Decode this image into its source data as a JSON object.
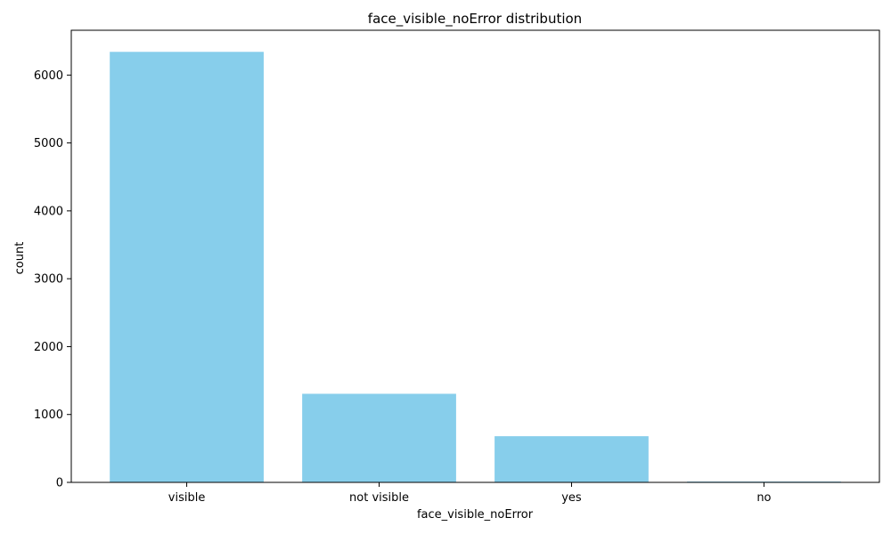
{
  "chart_data": {
    "type": "bar",
    "title": "face_visible_noError distribution",
    "xlabel": "face_visible_noError",
    "ylabel": "count",
    "categories": [
      "visible",
      "not visible",
      "yes",
      "no"
    ],
    "values": [
      6342,
      1305,
      680,
      12
    ],
    "ylim": [
      0,
      6660
    ],
    "yticks": [
      0,
      1000,
      2000,
      3000,
      4000,
      5000,
      6000
    ],
    "bar_color": "#87CEEB",
    "grid": false,
    "legend": "none"
  }
}
